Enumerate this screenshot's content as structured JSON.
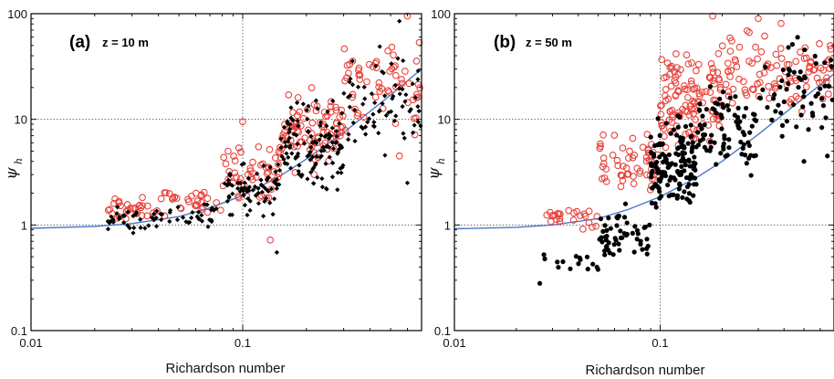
{
  "colors": {
    "observed_series": "#e8423a",
    "model_series": "#000000",
    "fit_curve": "#4a78c8",
    "grid": "#555555"
  },
  "chart_data": [
    {
      "type": "scatter",
      "panel": "(a)",
      "note": "z = 10 m",
      "xlabel": "Richardson number",
      "ylabel": "ψ",
      "ylabel_sub": "h",
      "x_scale": "log",
      "y_scale": "log",
      "xlim": [
        0.01,
        0.7
      ],
      "ylim": [
        0.1,
        100
      ],
      "x_ticks": [
        {
          "value": 0.01,
          "label": "0.01"
        },
        {
          "value": 0.1,
          "label": "0.1"
        }
      ],
      "y_ticks": [
        {
          "value": 0.1,
          "label": "0.1"
        },
        {
          "value": 1,
          "label": "1"
        },
        {
          "value": 10,
          "label": "10"
        },
        {
          "value": 100,
          "label": "100"
        }
      ],
      "grid": "dotted lines at x = 0.1 and y = 1, 10",
      "curve": {
        "x": [
          0.01,
          0.02,
          0.03,
          0.05,
          0.07,
          0.1,
          0.15,
          0.2,
          0.3,
          0.5,
          0.7
        ],
        "y": [
          0.93,
          0.97,
          1.03,
          1.2,
          1.45,
          1.9,
          2.9,
          4.2,
          7.5,
          17,
          30
        ]
      },
      "series": [
        {
          "marker": "open-circle",
          "color": "observed_series",
          "cluster": [
            {
              "xmin": 0.022,
              "xmax": 0.04,
              "ymin": 0.95,
              "ymax": 2.0,
              "n": 30
            },
            {
              "xmin": 0.04,
              "xmax": 0.08,
              "ymin": 1.1,
              "ymax": 2.5,
              "n": 30
            },
            {
              "xmin": 0.08,
              "xmax": 0.15,
              "ymin": 1.4,
              "ymax": 7.0,
              "n": 50
            },
            {
              "xmin": 0.15,
              "xmax": 0.3,
              "ymin": 2.5,
              "ymax": 25.0,
              "n": 90
            },
            {
              "xmin": 0.3,
              "xmax": 0.7,
              "ymin": 5.0,
              "ymax": 90.0,
              "n": 60
            }
          ],
          "points": [
            [
              0.135,
              0.72
            ],
            [
              0.6,
              95.0
            ],
            [
              0.55,
              4.5
            ],
            [
              0.1,
              9.5
            ]
          ]
        },
        {
          "marker": "filled-diamond",
          "color": "model_series",
          "cluster": [
            {
              "xmin": 0.022,
              "xmax": 0.04,
              "ymin": 0.8,
              "ymax": 1.6,
              "n": 35
            },
            {
              "xmin": 0.04,
              "xmax": 0.08,
              "ymin": 0.9,
              "ymax": 1.8,
              "n": 30
            },
            {
              "xmin": 0.08,
              "xmax": 0.15,
              "ymin": 1.0,
              "ymax": 5.0,
              "n": 70
            },
            {
              "xmin": 0.15,
              "xmax": 0.3,
              "ymin": 1.5,
              "ymax": 20.0,
              "n": 120
            },
            {
              "xmin": 0.3,
              "xmax": 0.7,
              "ymin": 3.0,
              "ymax": 60.0,
              "n": 70
            }
          ],
          "points": [
            [
              0.145,
              0.55
            ],
            [
              0.6,
              2.5
            ],
            [
              0.55,
              85.0
            ]
          ]
        }
      ]
    },
    {
      "type": "scatter",
      "panel": "(b)",
      "note": "z = 50 m",
      "xlabel": "Richardson number",
      "ylabel": "ψ",
      "ylabel_sub": "h",
      "x_scale": "log",
      "y_scale": "log",
      "xlim": [
        0.01,
        0.7
      ],
      "ylim": [
        0.1,
        100
      ],
      "x_ticks": [
        {
          "value": 0.01,
          "label": "0.01"
        },
        {
          "value": 0.1,
          "label": "0.1"
        }
      ],
      "y_ticks": [
        {
          "value": 0.1,
          "label": "0.1"
        },
        {
          "value": 1,
          "label": "1"
        },
        {
          "value": 10,
          "label": "10"
        },
        {
          "value": 100,
          "label": "100"
        }
      ],
      "grid": "dotted lines at x = 0.1 and y = 1, 10",
      "curve": {
        "x": [
          0.01,
          0.02,
          0.03,
          0.05,
          0.07,
          0.1,
          0.15,
          0.2,
          0.3,
          0.5,
          0.7
        ],
        "y": [
          0.92,
          0.95,
          1.0,
          1.15,
          1.4,
          1.85,
          2.8,
          4.0,
          7.2,
          16,
          27
        ]
      },
      "series": [
        {
          "marker": "open-circle",
          "color": "observed_series",
          "cluster": [
            {
              "xmin": 0.028,
              "xmax": 0.05,
              "ymin": 0.8,
              "ymax": 1.6,
              "n": 25
            },
            {
              "xmin": 0.05,
              "xmax": 0.1,
              "ymin": 1.4,
              "ymax": 9.0,
              "n": 60
            },
            {
              "xmin": 0.1,
              "xmax": 0.2,
              "ymin": 3.0,
              "ymax": 70.0,
              "n": 120
            },
            {
              "xmin": 0.2,
              "xmax": 0.7,
              "ymin": 8.0,
              "ymax": 95.0,
              "n": 100
            }
          ],
          "points": [
            [
              0.18,
              95.0
            ],
            [
              0.3,
              90.0
            ]
          ]
        },
        {
          "marker": "filled-circle",
          "color": "model_series",
          "cluster": [
            {
              "xmin": 0.026,
              "xmax": 0.05,
              "ymin": 0.28,
              "ymax": 0.7,
              "n": 15
            },
            {
              "xmin": 0.05,
              "xmax": 0.09,
              "ymin": 0.35,
              "ymax": 1.8,
              "n": 55
            },
            {
              "xmin": 0.09,
              "xmax": 0.15,
              "ymin": 1.0,
              "ymax": 15.0,
              "n": 150
            },
            {
              "xmin": 0.15,
              "xmax": 0.3,
              "ymin": 2.0,
              "ymax": 30.0,
              "n": 80
            },
            {
              "xmin": 0.3,
              "xmax": 0.7,
              "ymin": 4.0,
              "ymax": 90.0,
              "n": 60
            }
          ],
          "points": [
            [
              0.026,
              0.28
            ],
            [
              0.5,
              4.0
            ],
            [
              0.65,
              4.5
            ]
          ]
        }
      ]
    }
  ]
}
